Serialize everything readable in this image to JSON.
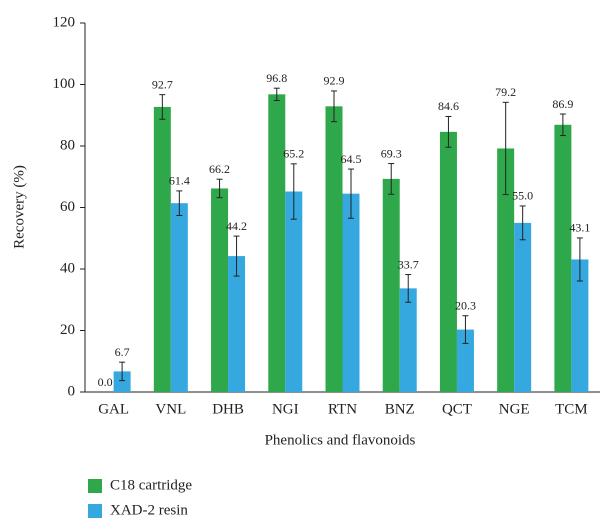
{
  "chart_data": {
    "type": "bar",
    "categories": [
      "GAL",
      "VNL",
      "DHB",
      "NGI",
      "RTN",
      "BNZ",
      "QCT",
      "NGE",
      "TCM"
    ],
    "series": [
      {
        "name": "C18 cartridge",
        "color": "#2ea84a",
        "values": [
          0.0,
          92.7,
          66.2,
          96.8,
          92.9,
          69.3,
          84.6,
          79.2,
          86.9
        ],
        "value_labels": [
          "0.0",
          "92.7",
          "66.2",
          "96.8",
          "92.9",
          "69.3",
          "84.6",
          "79.2",
          "86.9"
        ],
        "errors": [
          0,
          4,
          3,
          2,
          5,
          5,
          5,
          15,
          3.5
        ]
      },
      {
        "name": "XAD-2 resin",
        "color": "#35a8df",
        "values": [
          6.7,
          61.4,
          44.2,
          65.2,
          64.5,
          33.7,
          20.3,
          55.0,
          43.1
        ],
        "value_labels": [
          "6.7",
          "61.4",
          "44.2",
          "65.2",
          "64.5",
          "33.7",
          "20.3",
          "55.0",
          "43.1"
        ],
        "errors": [
          3,
          4,
          6.5,
          9,
          8,
          4.5,
          4.5,
          5.5,
          7
        ]
      }
    ],
    "x_label": "Phenolics and flavonoids",
    "y_label": "Recovery (%)",
    "ylim": [
      0,
      120
    ],
    "yticks": [
      0,
      20,
      40,
      60,
      80,
      100,
      120
    ]
  }
}
